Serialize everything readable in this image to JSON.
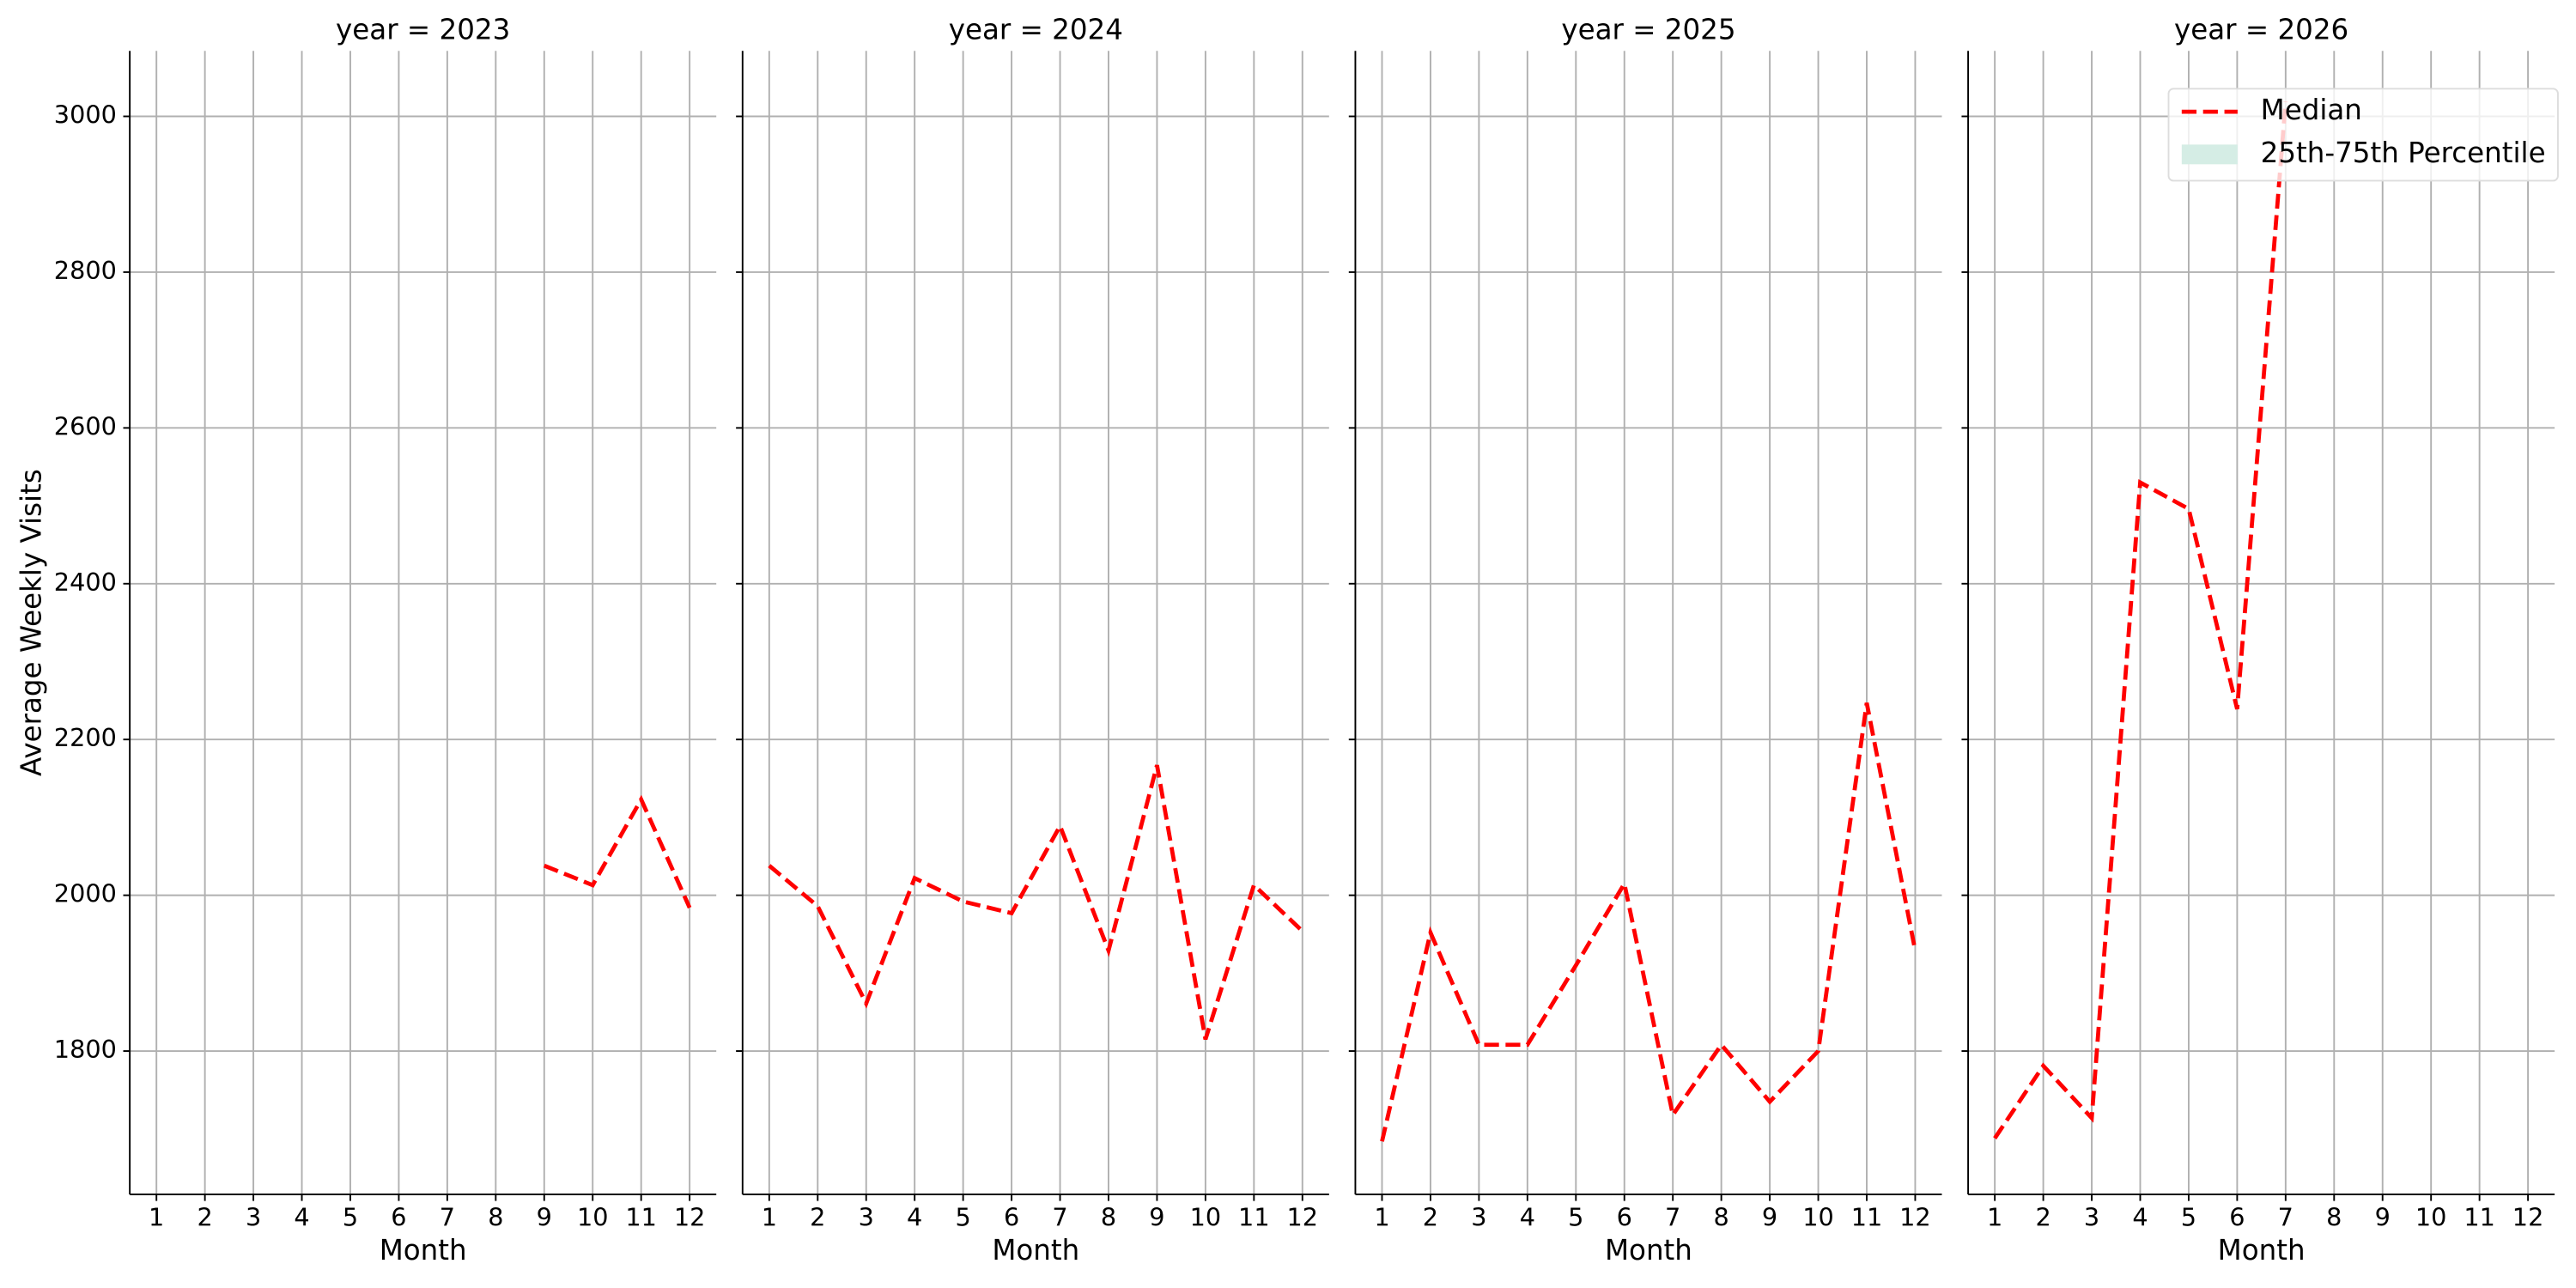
{
  "ylabel": "Average Weekly Visits",
  "chart_data": [
    {
      "type": "line",
      "title": "year = 2023",
      "xlabel": "Month",
      "x": [
        1,
        2,
        3,
        4,
        5,
        6,
        7,
        8,
        9,
        10,
        11,
        12
      ],
      "xlim": [
        0.45,
        12.55
      ],
      "xticks": [
        1,
        2,
        3,
        4,
        5,
        6,
        7,
        8,
        9,
        10,
        11,
        12
      ],
      "ylim": [
        1616,
        3084
      ],
      "yticks": [
        1800,
        2000,
        2200,
        2400,
        2600,
        2800,
        3000
      ],
      "grid": true,
      "series": [
        {
          "color": "#ff0000",
          "values": [
            null,
            null,
            null,
            null,
            null,
            null,
            null,
            null,
            2038,
            2013,
            2123,
            1984
          ]
        }
      ]
    },
    {
      "type": "line",
      "title": "year = 2024",
      "xlabel": "Month",
      "x": [
        1,
        2,
        3,
        4,
        5,
        6,
        7,
        8,
        9,
        10,
        11,
        12
      ],
      "xlim": [
        0.45,
        12.55
      ],
      "xticks": [
        1,
        2,
        3,
        4,
        5,
        6,
        7,
        8,
        9,
        10,
        11,
        12
      ],
      "ylim": [
        1616,
        3084
      ],
      "yticks": [
        1800,
        2000,
        2200,
        2400,
        2600,
        2800,
        3000
      ],
      "grid": true,
      "series": [
        {
          "color": "#ff0000",
          "values": [
            2038,
            1986,
            1861,
            2022,
            1992,
            1977,
            2089,
            1929,
            2167,
            1815,
            2013,
            1954
          ]
        }
      ]
    },
    {
      "type": "line",
      "title": "year = 2025",
      "xlabel": "Month",
      "x": [
        1,
        2,
        3,
        4,
        5,
        6,
        7,
        8,
        9,
        10,
        11,
        12
      ],
      "xlim": [
        0.45,
        12.55
      ],
      "xticks": [
        1,
        2,
        3,
        4,
        5,
        6,
        7,
        8,
        9,
        10,
        11,
        12
      ],
      "ylim": [
        1616,
        3084
      ],
      "yticks": [
        1800,
        2000,
        2200,
        2400,
        2600,
        2800,
        3000
      ],
      "grid": true,
      "series": [
        {
          "color": "#ff0000",
          "values": [
            1684,
            1952,
            1808,
            1808,
            1910,
            2015,
            1718,
            1808,
            1735,
            1800,
            2247,
            1929
          ]
        }
      ]
    },
    {
      "type": "line",
      "title": "year = 2026",
      "xlabel": "Month",
      "x": [
        1,
        2,
        3,
        4,
        5,
        6,
        7,
        8,
        9,
        10,
        11,
        12
      ],
      "xlim": [
        0.45,
        12.55
      ],
      "xticks": [
        1,
        2,
        3,
        4,
        5,
        6,
        7,
        8,
        9,
        10,
        11,
        12
      ],
      "ylim": [
        1616,
        3084
      ],
      "yticks": [
        1800,
        2000,
        2200,
        2400,
        2600,
        2800,
        3000
      ],
      "grid": true,
      "series": [
        {
          "color": "#ff0000",
          "values": [
            1688,
            1781,
            1714,
            2530,
            2496,
            2239,
            3019,
            null,
            null,
            null,
            null,
            null
          ]
        }
      ],
      "legend": [
        {
          "name": "Median",
          "color": "#ff0000"
        },
        {
          "name": "25th-75th Percentile",
          "color": "#d5ede5"
        }
      ]
    }
  ]
}
